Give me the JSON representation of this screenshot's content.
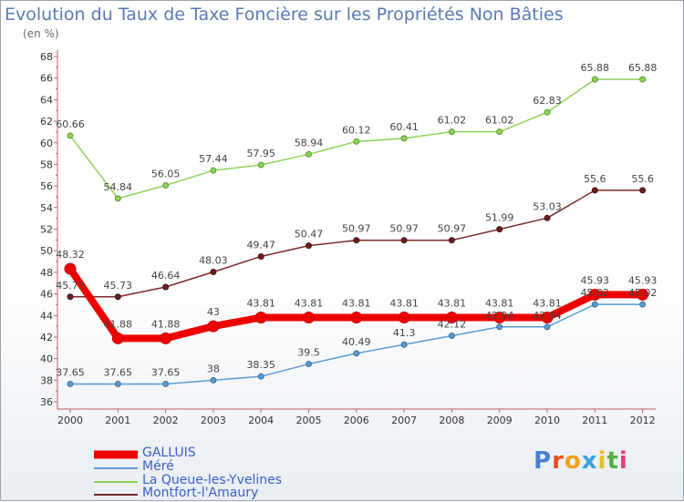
{
  "title": "Evolution du Taux de Taxe Foncière sur les Propriétés Non Bâties",
  "unit_label": "(en %)",
  "logo": "Proxiti",
  "chart_data": {
    "type": "line",
    "categories": [
      "2000",
      "2001",
      "2002",
      "2003",
      "2004",
      "2005",
      "2006",
      "2007",
      "2008",
      "2009",
      "2010",
      "2011",
      "2012"
    ],
    "ylim": [
      36,
      68
    ],
    "yticks": [
      36,
      38,
      40,
      42,
      44,
      46,
      48,
      50,
      52,
      54,
      56,
      58,
      60,
      62,
      64,
      66,
      68
    ],
    "grid": false,
    "legend_position": "bottom-left",
    "series": [
      {
        "name": "GALLUIS",
        "color": "#ee0000",
        "values": [
          48.32,
          41.88,
          41.88,
          43,
          43.81,
          43.81,
          43.81,
          43.81,
          43.81,
          43.81,
          43.81,
          45.93,
          45.93
        ],
        "labels": [
          "48.32",
          "41.88",
          "41.88",
          "43",
          "43.81",
          "43.81",
          "43.81",
          "43.81",
          "43.81",
          "43.81",
          "43.81",
          "45.93",
          "45.93"
        ]
      },
      {
        "name": "Méré",
        "color": "#5b9ad0",
        "values": [
          37.65,
          37.65,
          37.65,
          38,
          38.35,
          39.5,
          40.49,
          41.3,
          42.12,
          42.94,
          42.94,
          45.02,
          45.02
        ],
        "labels": [
          "37.65",
          "37.65",
          "37.65",
          "38",
          "38.35",
          "39.5",
          "40.49",
          "41.3",
          "42.12",
          "42.94",
          "42.94",
          "45.02",
          "45.02"
        ]
      },
      {
        "name": "La Queue-les-Yvelines",
        "color": "#8fd35a",
        "values": [
          60.66,
          54.84,
          56.05,
          57.44,
          57.95,
          58.94,
          60.12,
          60.41,
          61.02,
          61.02,
          62.83,
          65.88,
          65.88
        ],
        "labels": [
          "60.66",
          "54.84",
          "56.05",
          "57.44",
          "57.95",
          "58.94",
          "60.12",
          "60.41",
          "61.02",
          "61.02",
          "62.83",
          "65.88",
          "65.88"
        ]
      },
      {
        "name": "Montfort-l'Amaury",
        "color": "#7a2a2a",
        "values": [
          45.73,
          45.73,
          46.64,
          48.03,
          49.47,
          50.47,
          50.97,
          50.97,
          50.97,
          51.99,
          53.03,
          55.6,
          55.6
        ],
        "labels": [
          "45.73",
          "45.73",
          "46.64",
          "48.03",
          "49.47",
          "50.47",
          "50.97",
          "50.97",
          "50.97",
          "51.99",
          "53.03",
          "55.6",
          "55.6"
        ]
      }
    ]
  },
  "colors": {
    "title": "#5a7ab0",
    "axis": "#c06060",
    "logo_letters": [
      "#4a7fd0",
      "#e8501a",
      "#f0a020",
      "#3aa0e0",
      "#e8c020",
      "#58b040",
      "#e04080"
    ]
  }
}
